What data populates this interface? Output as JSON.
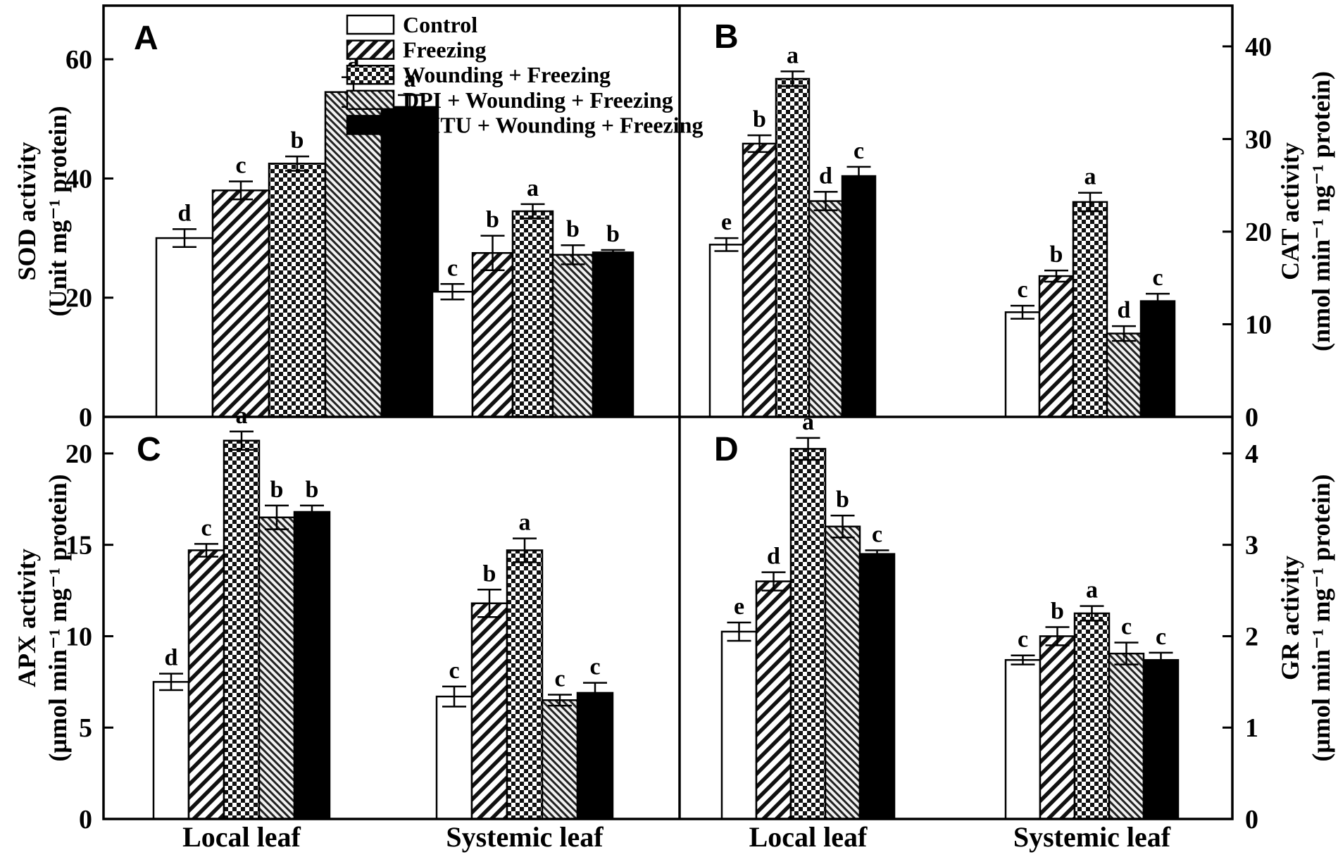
{
  "figure": {
    "background": "#ffffff",
    "frame_color": "#000000"
  },
  "legend": {
    "position": "top-left-inside-panel-A",
    "items": [
      {
        "label": "Control",
        "pattern": "control"
      },
      {
        "label": "Freezing",
        "pattern": "freezing"
      },
      {
        "label": "Wounding + Freezing",
        "pattern": "wounding"
      },
      {
        "label": "DPI + Wounding + Freezing",
        "pattern": "dpi"
      },
      {
        "label": "DMTU + Wounding + Freezing",
        "pattern": "dmtu"
      }
    ]
  },
  "chart_data": [
    {
      "type": "bar",
      "panel_label": "A",
      "ylabel_lines": [
        "SOD activity",
        "(Unit mg⁻¹ protein)"
      ],
      "axis_side": "left",
      "ylim": [
        0,
        69
      ],
      "yticks": [
        0,
        20,
        40,
        60
      ],
      "grid": false,
      "categories": [
        "Local leaf",
        "Systemic leaf"
      ],
      "series": [
        "Control",
        "Freezing",
        "Wounding + Freezing",
        "DPI + Wounding + Freezing",
        "DMTU + Wounding + Freezing"
      ],
      "groups": [
        {
          "category": "Local leaf",
          "values": [
            30,
            38,
            42.5,
            54.5,
            52
          ],
          "errors": [
            1.5,
            1.5,
            1.2,
            2.5,
            2
          ],
          "letters": [
            "d",
            "c",
            "b",
            "a",
            "a"
          ]
        },
        {
          "category": "Systemic leaf",
          "values": [
            21,
            27.5,
            34.5,
            27.2,
            27.6
          ],
          "errors": [
            1.3,
            2.9,
            1.2,
            1.6,
            0.4
          ],
          "letters": [
            "c",
            "b",
            "a",
            "b",
            "b"
          ]
        }
      ],
      "show_category_labels": false
    },
    {
      "type": "bar",
      "panel_label": "B",
      "ylabel_lines": [
        "CAT activity",
        "(nmol min⁻¹ ng⁻¹ protein)"
      ],
      "axis_side": "right",
      "ylim": [
        0,
        44.4
      ],
      "yticks": [
        0,
        10,
        20,
        30,
        40
      ],
      "grid": false,
      "categories": [
        "Local leaf",
        "Systemic leaf"
      ],
      "series": [
        "Control",
        "Freezing",
        "Wounding + Freezing",
        "DPI + Wounding + Freezing",
        "DMTU + Wounding + Freezing"
      ],
      "groups": [
        {
          "category": "Local leaf",
          "values": [
            18.6,
            29.5,
            36.5,
            23.3,
            26
          ],
          "errors": [
            0.7,
            0.9,
            0.8,
            1,
            1
          ],
          "letters": [
            "e",
            "b",
            "a",
            "d",
            "c"
          ]
        },
        {
          "category": "Systemic leaf",
          "values": [
            11.3,
            15.2,
            23.2,
            9,
            12.5
          ],
          "errors": [
            0.7,
            0.6,
            1,
            0.8,
            0.8
          ],
          "letters": [
            "c",
            "b",
            "a",
            "d",
            "c"
          ]
        }
      ],
      "show_category_labels": false
    },
    {
      "type": "bar",
      "panel_label": "C",
      "ylabel_lines": [
        "APX activity",
        "(μmol min⁻¹ mg⁻¹ protein)"
      ],
      "axis_side": "left",
      "ylim": [
        0,
        22
      ],
      "yticks": [
        0,
        5,
        10,
        15,
        20
      ],
      "grid": false,
      "categories": [
        "Local leaf",
        "Systemic leaf"
      ],
      "series": [
        "Control",
        "Freezing",
        "Wounding + Freezing",
        "DPI + Wounding + Freezing",
        "DMTU + Wounding + Freezing"
      ],
      "groups": [
        {
          "category": "Local leaf",
          "values": [
            7.5,
            14.7,
            20.7,
            16.5,
            16.8
          ],
          "errors": [
            0.45,
            0.35,
            0.5,
            0.65,
            0.35
          ],
          "letters": [
            "d",
            "c",
            "a",
            "b",
            "b"
          ]
        },
        {
          "category": "Systemic leaf",
          "values": [
            6.7,
            11.8,
            14.7,
            6.5,
            6.9
          ],
          "errors": [
            0.55,
            0.75,
            0.65,
            0.3,
            0.55
          ],
          "letters": [
            "c",
            "b",
            "a",
            "c",
            "c"
          ]
        }
      ],
      "show_category_labels": true
    },
    {
      "type": "bar",
      "panel_label": "D",
      "ylabel_lines": [
        "GR activity",
        "(μmol min⁻¹ mg⁻¹ protein)"
      ],
      "axis_side": "right",
      "ylim": [
        0,
        4.4
      ],
      "yticks": [
        0,
        1,
        2,
        3,
        4
      ],
      "grid": false,
      "categories": [
        "Local leaf",
        "Systemic leaf"
      ],
      "series": [
        "Control",
        "Freezing",
        "Wounding + Freezing",
        "DPI + Wounding + Freezing",
        "DMTU + Wounding + Freezing"
      ],
      "groups": [
        {
          "category": "Local leaf",
          "values": [
            2.05,
            2.6,
            4.05,
            3.2,
            2.9
          ],
          "errors": [
            0.1,
            0.1,
            0.12,
            0.12,
            0.04
          ],
          "letters": [
            "e",
            "d",
            "a",
            "b",
            "c"
          ]
        },
        {
          "category": "Systemic leaf",
          "values": [
            1.74,
            2,
            2.25,
            1.81,
            1.74
          ],
          "errors": [
            0.05,
            0.1,
            0.08,
            0.12,
            0.08
          ],
          "letters": [
            "c",
            "b",
            "a",
            "c",
            "c"
          ]
        }
      ],
      "show_category_labels": true
    }
  ]
}
